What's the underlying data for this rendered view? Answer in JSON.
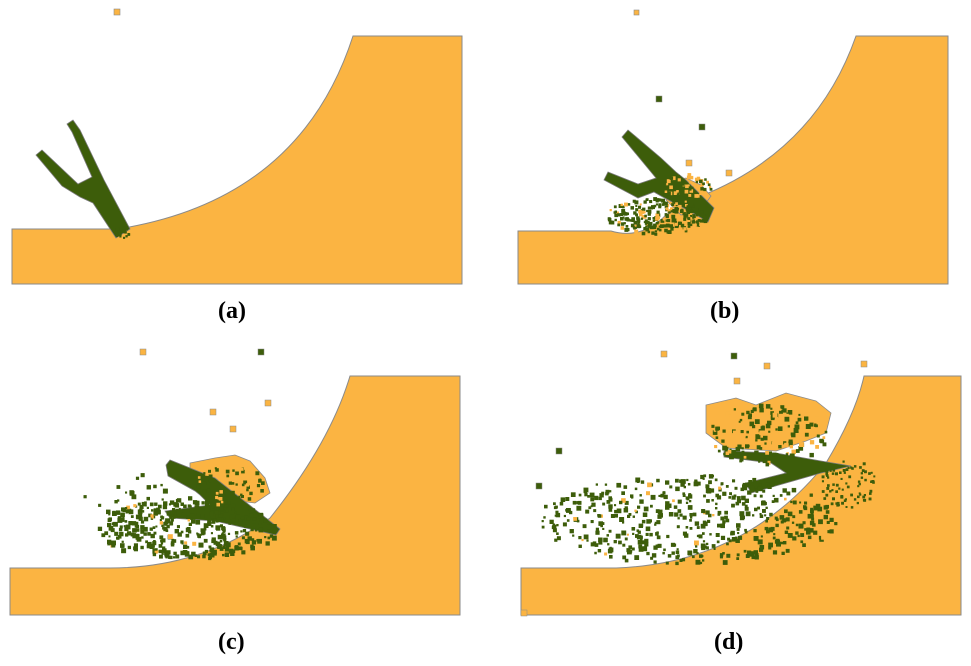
{
  "colors": {
    "terrain": "#fbb442",
    "terrain_outline": "#8a8a8a",
    "tool": "#3d5d0a",
    "tool_outline": "#7a7a7a",
    "background": "#ffffff"
  },
  "panels": [
    {
      "label": "(a)",
      "stage": 0
    },
    {
      "label": "(b)",
      "stage": 1
    },
    {
      "label": "(c)",
      "stage": 2
    },
    {
      "label": "(d)",
      "stage": 3
    }
  ]
}
